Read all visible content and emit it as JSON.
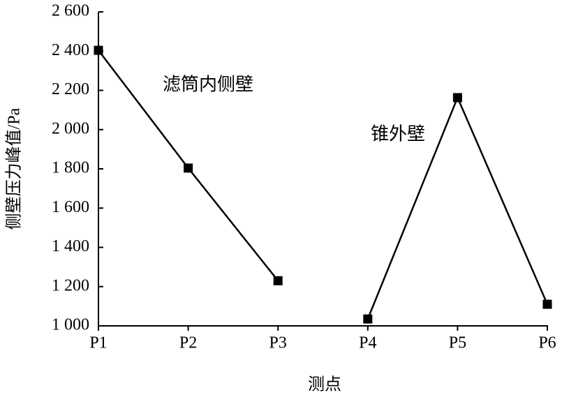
{
  "chart_data": {
    "type": "line",
    "x_label": "测点",
    "y_label": "侧壁压力峰值/Pa",
    "categories": [
      "P1",
      "P2",
      "P3",
      "P4",
      "P5",
      "P6"
    ],
    "series": [
      {
        "name": "滤筒内侧壁",
        "color": "#000000",
        "values": [
          2404,
          1804,
          1230,
          null,
          null,
          null
        ]
      },
      {
        "name": "锥外壁",
        "color": "#000000",
        "values": [
          null,
          null,
          null,
          1035,
          2163,
          1110
        ]
      }
    ],
    "ylim": [
      1000,
      2600
    ],
    "yticks": [
      {
        "value": 1000,
        "label": "1 000"
      },
      {
        "value": 1200,
        "label": "1 200"
      },
      {
        "value": 1400,
        "label": "1 400"
      },
      {
        "value": 1600,
        "label": "1 600"
      },
      {
        "value": 1800,
        "label": "1 800"
      },
      {
        "value": 2000,
        "label": "2 000"
      },
      {
        "value": 2200,
        "label": "2 200"
      },
      {
        "value": 2400,
        "label": "2 400"
      },
      {
        "value": 2600,
        "label": "2 600"
      }
    ],
    "grid": false
  }
}
